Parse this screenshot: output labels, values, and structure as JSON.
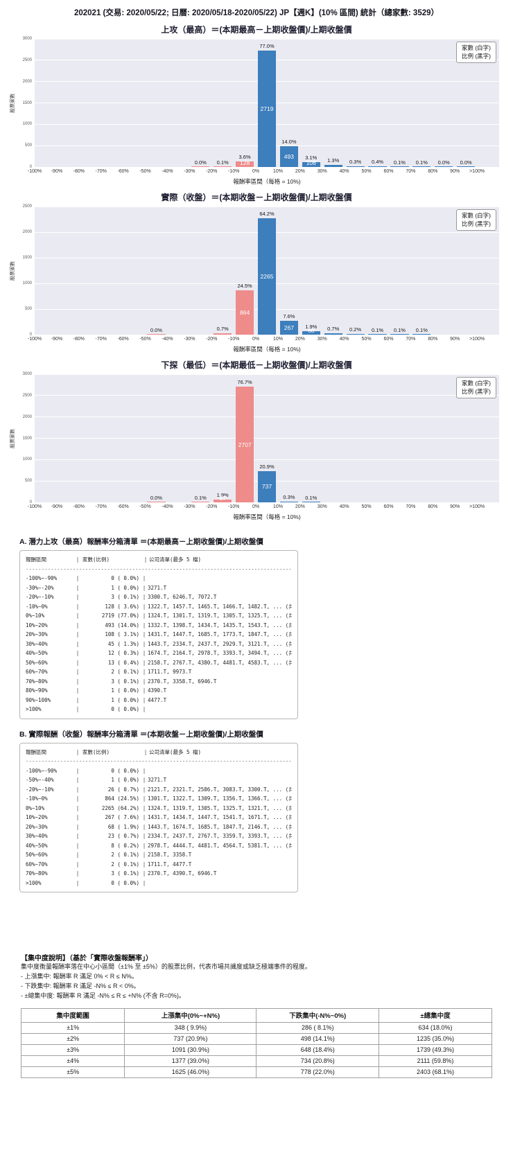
{
  "page": {
    "title": "202021 (交易: 2020/05/22; 日曆: 2020/05/18-2020/05/22) JP【週K】(10% 區間) 統計（總家數: 3529）"
  },
  "colors": {
    "bar_positive": "#3d7ebc",
    "bar_negative": "#ee8b8b",
    "plot_bg": "#eaeaf2",
    "grid": "#ffffff"
  },
  "chart_shared": {
    "legend": [
      "家數 (白字)",
      "比例 (黑字)"
    ],
    "xticks": [
      "-100%",
      "-90%",
      "-80%",
      "-70%",
      "-60%",
      "-50%",
      "-40%",
      "-30%",
      "-20%",
      "-10%",
      "0%",
      "10%",
      "20%",
      "30%",
      "40%",
      "50%",
      "60%",
      "70%",
      "80%",
      "90%",
      ">100%"
    ]
  },
  "chart_data": [
    {
      "type": "bar",
      "title": "上攻（最高）＝(本期最高－上期收盤價)/上期收盤價",
      "xlabel": "報酬率區間（每格 = 10%)",
      "ylabel": "股票家數",
      "ylim": [
        0,
        3000
      ],
      "yticks": [
        0,
        500,
        1000,
        1500,
        2000,
        2500,
        3000
      ],
      "categories": [
        "-100%~-90%",
        "-90%~-80%",
        "-80%~-70%",
        "-70%~-60%",
        "-60%~-50%",
        "-50%~-40%",
        "-40%~-30%",
        "-30%~-20%",
        "-20%~-10%",
        "-10%~0%",
        "0%~10%",
        "10%~20%",
        "20%~30%",
        "30%~40%",
        "40%~50%",
        "50%~60%",
        "60%~70%",
        "70%~80%",
        "80%~90%",
        "90%~100%",
        ">100%"
      ],
      "counts": [
        0,
        0,
        0,
        0,
        0,
        0,
        0,
        1,
        3,
        128,
        2719,
        493,
        108,
        45,
        12,
        13,
        2,
        3,
        1,
        1,
        0
      ],
      "pcts": [
        "",
        "",
        "",
        "",
        "",
        "",
        "",
        "0.0%",
        "0.1%",
        "3.6%",
        "77.0%",
        "14.0%",
        "3.1%",
        "1.3%",
        "0.3%",
        "0.4%",
        "0.1%",
        "0.1%",
        "0.0%",
        "0.0%",
        ""
      ]
    },
    {
      "type": "bar",
      "title": "實際（收盤）＝(本期收盤－上期收盤價)/上期收盤價",
      "xlabel": "報酬率區間（每格 = 10%)",
      "ylabel": "股票家數",
      "ylim": [
        0,
        2500
      ],
      "yticks": [
        0,
        500,
        1000,
        1500,
        2000,
        2500
      ],
      "categories": [
        "-100%~-90%",
        "-90%~-80%",
        "-80%~-70%",
        "-70%~-60%",
        "-60%~-50%",
        "-50%~-40%",
        "-40%~-30%",
        "-30%~-20%",
        "-20%~-10%",
        "-10%~0%",
        "0%~10%",
        "10%~20%",
        "20%~30%",
        "30%~40%",
        "40%~50%",
        "50%~60%",
        "60%~70%",
        "70%~80%",
        "80%~90%",
        "90%~100%",
        ">100%"
      ],
      "counts": [
        0,
        0,
        0,
        0,
        0,
        1,
        0,
        0,
        26,
        864,
        2265,
        267,
        68,
        23,
        8,
        2,
        2,
        3,
        0,
        0,
        0
      ],
      "pcts": [
        "",
        "",
        "",
        "",
        "",
        "0.0%",
        "",
        "",
        "0.7%",
        "24.5%",
        "64.2%",
        "7.6%",
        "1.9%",
        "0.7%",
        "0.2%",
        "0.1%",
        "0.1%",
        "0.1%",
        "",
        "",
        ""
      ]
    },
    {
      "type": "bar",
      "title": "下探（最低）＝(本期最低－上期收盤價)/上期收盤價",
      "xlabel": "報酬率區間（每格 = 10%)",
      "ylabel": "股票家數",
      "ylim": [
        0,
        3000
      ],
      "yticks": [
        0,
        500,
        1000,
        1500,
        2000,
        2500,
        3000
      ],
      "categories": [
        "-100%~-90%",
        "-90%~-80%",
        "-80%~-70%",
        "-70%~-60%",
        "-60%~-50%",
        "-50%~-40%",
        "-40%~-30%",
        "-30%~-20%",
        "-20%~-10%",
        "-10%~0%",
        "0%~10%",
        "10%~20%",
        "20%~30%",
        "30%~40%",
        "40%~50%",
        "50%~60%",
        "60%~70%",
        "70%~80%",
        "80%~90%",
        "90%~100%",
        ">100%"
      ],
      "counts": [
        0,
        0,
        0,
        0,
        0,
        1,
        0,
        2,
        67,
        2707,
        737,
        11,
        4,
        0,
        0,
        0,
        0,
        0,
        0,
        0,
        0
      ],
      "pcts": [
        "",
        "",
        "",
        "",
        "",
        "0.0%",
        "",
        "0.1%",
        "1.9%",
        "76.7%",
        "20.9%",
        "0.3%",
        "0.1%",
        "",
        "",
        "",
        "",
        "",
        "",
        "",
        ""
      ]
    }
  ],
  "section_a": {
    "heading": "A. 潛力上攻（最高）報酬率分箱清單 ＝(本期最高－上期收盤價)/上期收盤價",
    "col_headers": [
      "報酬區間",
      "家數(比例)",
      "公司清單(最多 5 檔)"
    ],
    "rows": [
      {
        "range": "-100%~-90%",
        "count": "0 ( 0.0%)",
        "companies": ""
      },
      {
        "range": "-30%~-20%",
        "count": "1 ( 0.0%)",
        "companies": "3271.T"
      },
      {
        "range": "-20%~-10%",
        "count": "3 ( 0.1%)",
        "companies": "3300.T, 6246.T, 7072.T"
      },
      {
        "range": "-10%~0%",
        "count": "128 ( 3.6%)",
        "companies": "1322.T, 1457.T, 1465.T, 1466.T, 1482.T, ... (共 128 檔)"
      },
      {
        "range": "0%~10%",
        "count": "2719 (77.0%)",
        "companies": "1324.T, 1301.T, 1319.T, 1305.T, 1325.T, ... (共 2719 檔)"
      },
      {
        "range": "10%~20%",
        "count": "493 (14.0%)",
        "companies": "1332.T, 1398.T, 1434.T, 1435.T, 1543.T, ... (共 493 檔)"
      },
      {
        "range": "20%~30%",
        "count": "108 ( 3.1%)",
        "companies": "1431.T, 1447.T, 1685.T, 1773.T, 1847.T, ... (共 108 檔)"
      },
      {
        "range": "30%~40%",
        "count": "45 ( 1.3%)",
        "companies": "1443.T, 2334.T, 2437.T, 2929.T, 3121.T, ... (共 45 檔)"
      },
      {
        "range": "40%~50%",
        "count": "12 ( 0.3%)",
        "companies": "1674.T, 2164.T, 2978.T, 3393.T, 3494.T, ... (共 12 檔)"
      },
      {
        "range": "50%~60%",
        "count": "13 ( 0.4%)",
        "companies": "2158.T, 2767.T, 4380.T, 4481.T, 4583.T, ... (共 13 檔)"
      },
      {
        "range": "60%~70%",
        "count": "2 ( 0.1%)",
        "companies": "1711.T, 9973.T"
      },
      {
        "range": "70%~80%",
        "count": "3 ( 0.1%)",
        "companies": "2370.T, 3358.T, 6946.T"
      },
      {
        "range": "80%~90%",
        "count": "1 ( 0.0%)",
        "companies": "4390.T"
      },
      {
        "range": "90%~100%",
        "count": "1 ( 0.0%)",
        "companies": "4477.T"
      },
      {
        "range": ">100%",
        "count": "0 ( 0.0%)",
        "companies": ""
      }
    ]
  },
  "section_b": {
    "heading": "B. 實際報酬（收盤）報酬率分箱清單 ＝(本期收盤－上期收盤價)/上期收盤價",
    "col_headers": [
      "報酬區間",
      "家數(比例)",
      "公司清單(最多 5 檔)"
    ],
    "rows": [
      {
        "range": "-100%~-90%",
        "count": "0 ( 0.0%)",
        "companies": ""
      },
      {
        "range": "-50%~-40%",
        "count": "1 ( 0.0%)",
        "companies": "3271.T"
      },
      {
        "range": "-20%~-10%",
        "count": "26 ( 0.7%)",
        "companies": "2121.T, 2321.T, 2586.T, 3083.T, 3300.T, ... (共 26 檔)"
      },
      {
        "range": "-10%~0%",
        "count": "864 (24.5%)",
        "companies": "1301.T, 1322.T, 1309.T, 1356.T, 1366.T, ... (共 864 檔)"
      },
      {
        "range": "0%~10%",
        "count": "2265 (64.2%)",
        "companies": "1324.T, 1319.T, 1305.T, 1325.T, 1321.T, ... (共 2265 檔)"
      },
      {
        "range": "10%~20%",
        "count": "267 ( 7.6%)",
        "companies": "1431.T, 1434.T, 1447.T, 1541.T, 1671.T, ... (共 267 檔)"
      },
      {
        "range": "20%~30%",
        "count": "68 ( 1.9%)",
        "companies": "1443.T, 1674.T, 1685.T, 1847.T, 2146.T, ... (共 68 檔)"
      },
      {
        "range": "30%~40%",
        "count": "23 ( 0.7%)",
        "companies": "2334.T, 2437.T, 2767.T, 3359.T, 3393.T, ... (共 23 檔)"
      },
      {
        "range": "40%~50%",
        "count": "8 ( 0.2%)",
        "companies": "2978.T, 4444.T, 4481.T, 4564.T, 5381.T, ... (共 8 檔)"
      },
      {
        "range": "50%~60%",
        "count": "2 ( 0.1%)",
        "companies": "2158.T, 3358.T"
      },
      {
        "range": "60%~70%",
        "count": "2 ( 0.1%)",
        "companies": "1711.T, 4477.T"
      },
      {
        "range": "70%~80%",
        "count": "3 ( 0.1%)",
        "companies": "2370.T, 4390.T, 6946.T"
      },
      {
        "range": ">100%",
        "count": "0 ( 0.0%)",
        "companies": ""
      }
    ]
  },
  "concentration": {
    "heading": "【集中度說明】（基於「實際收盤報酬率」）",
    "desc": [
      "集中度衡量報酬率落在中心小區間（±1% 至 ±5%）的股票比例，代表市場共識度或缺乏極端事件的程度。",
      " - 上漲集中: 報酬率 R 滿足 0% < R ≤ N%。",
      " - 下跌集中: 報酬率 R 滿足 -N% ≤ R < 0%。",
      " - ±總集中度: 報酬率 R 滿足 -N% ≤ R ≤ +N% (不含 R=0%)。"
    ],
    "table": {
      "headers": [
        "集中度範圍",
        "上漲集中(0%~+N%)",
        "下跌集中(-N%~0%)",
        "±總集中度"
      ],
      "rows": [
        [
          "±1%",
          "348 ( 9.9%)",
          "286 ( 8.1%)",
          "634 (18.0%)"
        ],
        [
          "±2%",
          "737 (20.9%)",
          "498 (14.1%)",
          "1235 (35.0%)"
        ],
        [
          "±3%",
          "1091 (30.9%)",
          "648 (18.4%)",
          "1739 (49.3%)"
        ],
        [
          "±4%",
          "1377 (39.0%)",
          "734 (20.8%)",
          "2111 (59.8%)"
        ],
        [
          "±5%",
          "1625 (46.0%)",
          "778 (22.0%)",
          "2403 (68.1%)"
        ]
      ]
    }
  }
}
